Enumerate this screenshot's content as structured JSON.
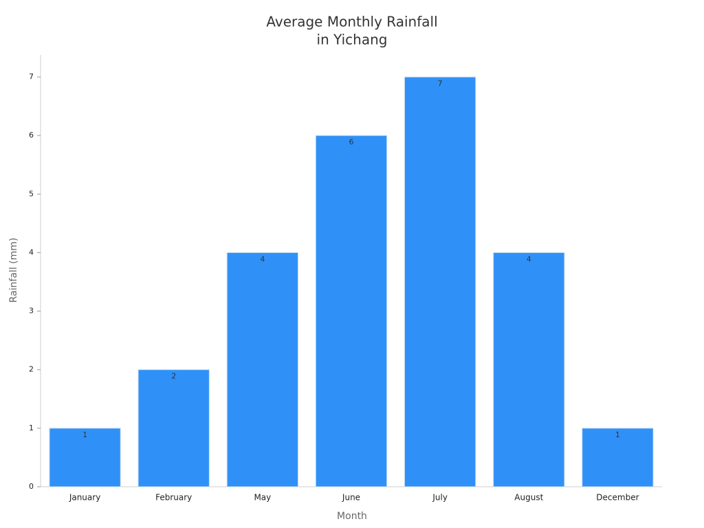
{
  "chart_data": {
    "type": "bar",
    "title": [
      "Average Monthly Rainfall",
      "in Yichang"
    ],
    "x_label": "Month",
    "y_label": "Rainfall (mm)",
    "categories": [
      "January",
      "February",
      "May",
      "June",
      "July",
      "August",
      "December"
    ],
    "values": [
      1,
      2,
      4,
      6,
      7,
      4,
      1
    ],
    "color": "#2f91f7",
    "ylim": [
      0,
      7
    ],
    "yticks": [
      0,
      1,
      2,
      3,
      4,
      5,
      6,
      7
    ],
    "grid": false
  }
}
